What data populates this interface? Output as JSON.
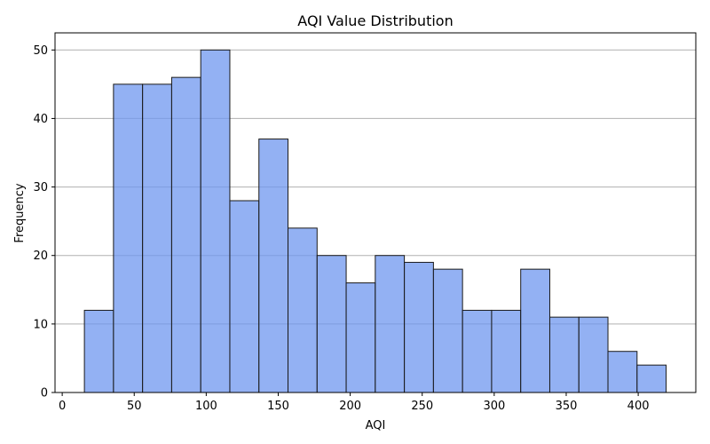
{
  "chart_data": {
    "type": "bar",
    "title": "AQI Value Distribution",
    "xlabel": "AQI",
    "ylabel": "Frequency",
    "xlim": [
      -5,
      440
    ],
    "ylim": [
      0,
      52.5
    ],
    "x_ticks": [
      0,
      50,
      100,
      150,
      200,
      250,
      300,
      350,
      400
    ],
    "y_ticks": [
      0,
      10,
      20,
      30,
      40,
      50
    ],
    "grid": "horizontal",
    "bar_color": "#6f97ef",
    "bar_edge_color": "#1a1a1a",
    "grid_color": "#b0b0b0",
    "bins": [
      {
        "x0": 15.4,
        "x1": 35.6,
        "count": 12
      },
      {
        "x0": 35.6,
        "x1": 55.8,
        "count": 45
      },
      {
        "x0": 55.8,
        "x1": 76.0,
        "count": 45
      },
      {
        "x0": 76.0,
        "x1": 96.2,
        "count": 46
      },
      {
        "x0": 96.2,
        "x1": 116.4,
        "count": 50
      },
      {
        "x0": 116.4,
        "x1": 136.6,
        "count": 28
      },
      {
        "x0": 136.6,
        "x1": 156.8,
        "count": 37
      },
      {
        "x0": 156.8,
        "x1": 177.0,
        "count": 24
      },
      {
        "x0": 177.0,
        "x1": 197.2,
        "count": 20
      },
      {
        "x0": 197.2,
        "x1": 217.4,
        "count": 16
      },
      {
        "x0": 217.4,
        "x1": 237.6,
        "count": 20
      },
      {
        "x0": 237.6,
        "x1": 257.8,
        "count": 19
      },
      {
        "x0": 257.8,
        "x1": 278.0,
        "count": 18
      },
      {
        "x0": 278.0,
        "x1": 298.2,
        "count": 12
      },
      {
        "x0": 298.2,
        "x1": 318.4,
        "count": 12
      },
      {
        "x0": 318.4,
        "x1": 338.6,
        "count": 18
      },
      {
        "x0": 338.6,
        "x1": 358.8,
        "count": 11
      },
      {
        "x0": 358.8,
        "x1": 379.0,
        "count": 11
      },
      {
        "x0": 379.0,
        "x1": 399.2,
        "count": 6
      },
      {
        "x0": 399.2,
        "x1": 419.4,
        "count": 4
      }
    ]
  }
}
